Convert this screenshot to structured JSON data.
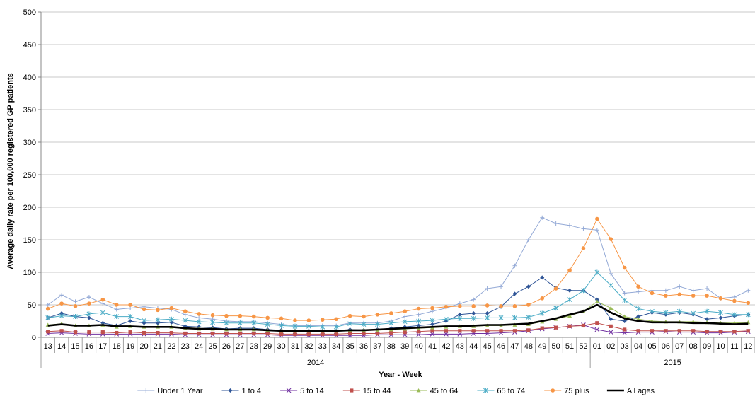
{
  "chart_data": {
    "type": "line",
    "title": "",
    "xlabel": "Year - Week",
    "ylabel": "Average daily rate per 100,000 registered GP patients",
    "ylim": [
      0,
      500
    ],
    "yticks": [
      0,
      50,
      100,
      150,
      200,
      250,
      300,
      350,
      400,
      450,
      500
    ],
    "grid": "horizontal",
    "legend_position": "bottom",
    "categories": [
      "13",
      "14",
      "15",
      "16",
      "17",
      "18",
      "19",
      "20",
      "21",
      "22",
      "23",
      "24",
      "25",
      "26",
      "27",
      "28",
      "29",
      "30",
      "31",
      "32",
      "33",
      "34",
      "35",
      "36",
      "37",
      "38",
      "39",
      "40",
      "41",
      "42",
      "43",
      "44",
      "45",
      "46",
      "47",
      "48",
      "49",
      "50",
      "51",
      "52",
      "01",
      "02",
      "03",
      "04",
      "05",
      "06",
      "07",
      "08",
      "09",
      "10",
      "11",
      "12"
    ],
    "year_groups": [
      {
        "label": "2014",
        "start": 0,
        "end": 39
      },
      {
        "label": "2015",
        "start": 40,
        "end": 51
      }
    ],
    "series": [
      {
        "name": "Under 1 Year",
        "color": "#93a9d6",
        "marker": "plus",
        "width": 1,
        "values": [
          50,
          65,
          55,
          62,
          52,
          43,
          45,
          47,
          45,
          43,
          35,
          30,
          28,
          25,
          24,
          24,
          22,
          20,
          18,
          18,
          18,
          18,
          22,
          22,
          22,
          25,
          32,
          35,
          40,
          45,
          52,
          58,
          75,
          78,
          110,
          150,
          184,
          175,
          172,
          167,
          165,
          98,
          68,
          70,
          72,
          72,
          78,
          72,
          75,
          60,
          62,
          72
        ]
      },
      {
        "name": "1 to 4",
        "color": "#2f5597",
        "marker": "diamond",
        "width": 1,
        "values": [
          30,
          37,
          32,
          30,
          22,
          18,
          25,
          22,
          22,
          23,
          17,
          16,
          15,
          13,
          14,
          14,
          12,
          11,
          10,
          10,
          10,
          10,
          12,
          11,
          12,
          14,
          16,
          18,
          20,
          25,
          35,
          37,
          37,
          47,
          67,
          78,
          92,
          76,
          72,
          72,
          58,
          28,
          25,
          32,
          38,
          35,
          38,
          35,
          28,
          30,
          33,
          35
        ]
      },
      {
        "name": "5 to 14",
        "color": "#7030a0",
        "marker": "x",
        "width": 1,
        "values": [
          6,
          7,
          6,
          5,
          5,
          5,
          5,
          5,
          5,
          5,
          4,
          4,
          4,
          4,
          4,
          4,
          4,
          3,
          3,
          3,
          3,
          3,
          3,
          3,
          4,
          4,
          4,
          4,
          5,
          5,
          5,
          6,
          6,
          7,
          8,
          10,
          13,
          15,
          17,
          19,
          12,
          8,
          7,
          8,
          8,
          9,
          8,
          8,
          7,
          7,
          8,
          9
        ]
      },
      {
        "name": "15 to 44",
        "color": "#c0504d",
        "marker": "square",
        "width": 1,
        "values": [
          9,
          10,
          8,
          8,
          8,
          7,
          8,
          7,
          7,
          7,
          6,
          6,
          6,
          6,
          6,
          6,
          6,
          5,
          5,
          5,
          5,
          5,
          6,
          6,
          6,
          7,
          8,
          9,
          10,
          10,
          10,
          10,
          10,
          10,
          10,
          11,
          14,
          15,
          17,
          18,
          22,
          17,
          12,
          10,
          10,
          10,
          10,
          10,
          9,
          9,
          9,
          10
        ]
      },
      {
        "name": "45 to 64",
        "color": "#9bbb59",
        "marker": "triangle",
        "width": 1,
        "values": [
          19,
          21,
          18,
          18,
          19,
          16,
          17,
          16,
          16,
          16,
          14,
          13,
          13,
          12,
          12,
          12,
          11,
          10,
          10,
          10,
          10,
          10,
          11,
          11,
          11,
          12,
          13,
          14,
          15,
          16,
          17,
          17,
          18,
          18,
          19,
          20,
          24,
          28,
          33,
          40,
          55,
          45,
          32,
          28,
          25,
          24,
          24,
          24,
          23,
          22,
          22,
          23
        ]
      },
      {
        "name": "65 to 74",
        "color": "#4bacc6",
        "marker": "asterisk",
        "width": 1,
        "values": [
          30,
          33,
          32,
          36,
          38,
          32,
          32,
          26,
          27,
          28,
          26,
          24,
          23,
          22,
          22,
          22,
          20,
          18,
          17,
          17,
          16,
          16,
          21,
          20,
          20,
          22,
          24,
          25,
          26,
          28,
          29,
          29,
          30,
          30,
          30,
          31,
          37,
          45,
          58,
          72,
          100,
          80,
          57,
          44,
          40,
          38,
          40,
          37,
          40,
          38,
          35,
          35
        ]
      },
      {
        "name": "75 plus",
        "color": "#f79646",
        "marker": "circle",
        "width": 1,
        "values": [
          44,
          52,
          48,
          52,
          58,
          50,
          50,
          43,
          42,
          45,
          40,
          36,
          34,
          33,
          33,
          32,
          30,
          29,
          26,
          26,
          27,
          28,
          33,
          32,
          35,
          37,
          40,
          44,
          45,
          47,
          48,
          48,
          49,
          48,
          48,
          50,
          60,
          75,
          103,
          137,
          182,
          151,
          107,
          78,
          68,
          64,
          66,
          64,
          64,
          60,
          56,
          53
        ]
      },
      {
        "name": "All ages",
        "color": "#000000",
        "marker": "none",
        "width": 2.6,
        "values": [
          18,
          20,
          18,
          18,
          19,
          17,
          17,
          16,
          16,
          16,
          14,
          13,
          13,
          12,
          12,
          12,
          11,
          10,
          10,
          10,
          10,
          10,
          11,
          11,
          12,
          13,
          14,
          15,
          16,
          17,
          17,
          18,
          19,
          19,
          20,
          21,
          25,
          29,
          35,
          40,
          50,
          38,
          29,
          25,
          23,
          23,
          23,
          22,
          22,
          21,
          20,
          21
        ]
      }
    ]
  }
}
